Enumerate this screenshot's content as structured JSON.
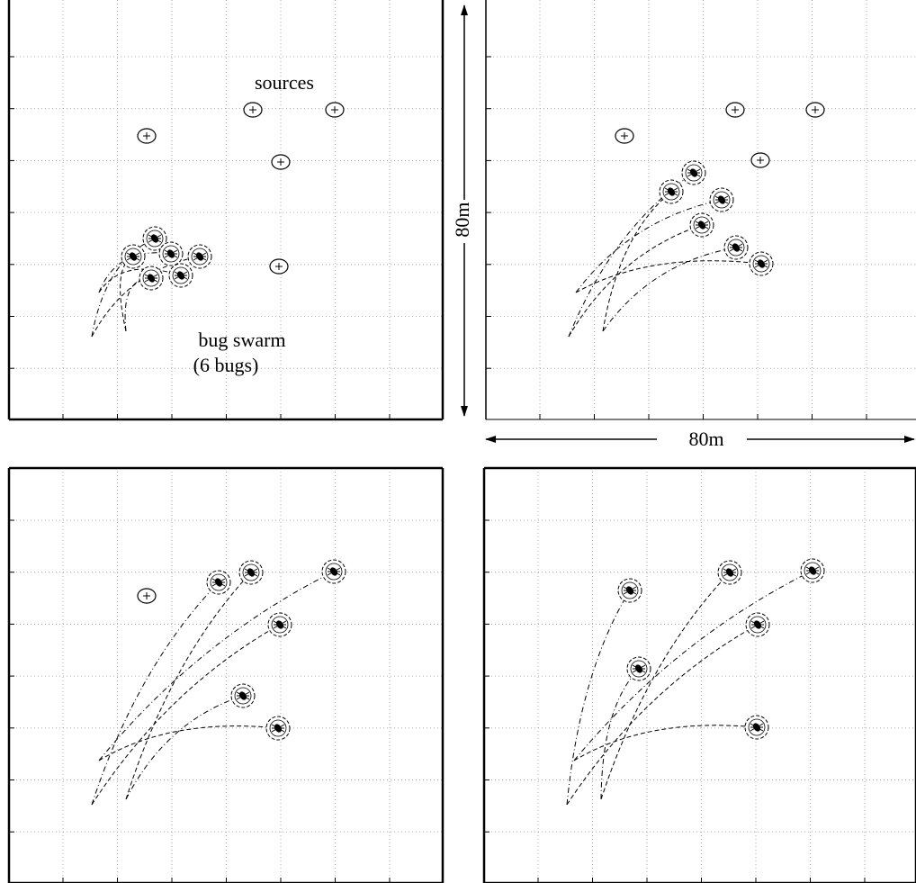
{
  "annotations": {
    "sources": "sources",
    "swarm": "bug swarm",
    "swarm_count": "(6 bugs)",
    "height": "80m",
    "width": "80m"
  }
}
